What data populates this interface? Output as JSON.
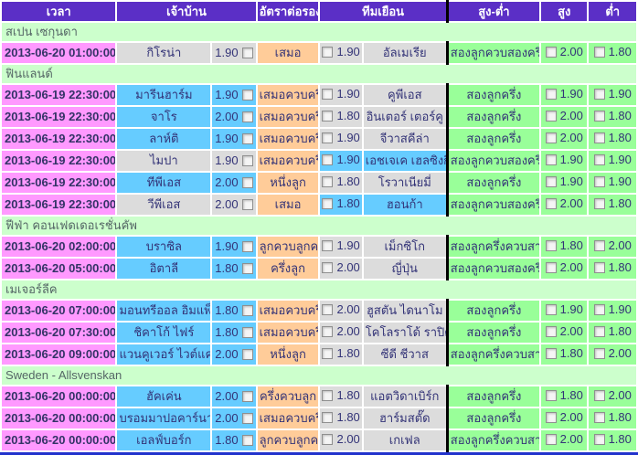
{
  "colors": {
    "header_bg": "#5B2FC6",
    "header_text": "#FFFFFF",
    "section_bg": "#CCFFCC",
    "time_bg": "#FF99FF",
    "favorite_team_bg": "#66CCFF",
    "neutral_team_bg": "#DCDCDC",
    "handicap_bg": "#FFCC99",
    "over_under_bg": "#99FF99",
    "separator": "#000000",
    "bottom_line": "#2233CC"
  },
  "table": {
    "headers": {
      "time": "เวลา",
      "home": "เจ้าบ้าน",
      "handicap": "อัตราต่อรอง",
      "away": "ทีมเยือน",
      "over_under": "สูง-ต่ำ",
      "over": "สูง",
      "under": "ต่ำ"
    },
    "sections": [
      {
        "league": "สเปน เซกุนดา",
        "matches": [
          {
            "time": "2013-06-20 01:00:00",
            "home": "กิโรน่า",
            "home_odds": "1.90",
            "handicap": "เสมอ",
            "away_odds": "1.90",
            "away": "อัลเมเรีย",
            "over_under": "สองลูกควบสองครึ่ง",
            "over": "2.00",
            "under": "1.80",
            "highlight": "none"
          }
        ]
      },
      {
        "league": "ฟินแลนด์",
        "matches": [
          {
            "time": "2013-06-19 22:30:00",
            "home": "มารีนฮาร์ม",
            "home_odds": "1.90",
            "handicap": "เสมอควบครึ่ง",
            "away_odds": "1.90",
            "away": "คูพีเอส",
            "over_under": "สองลูกครึ่ง",
            "over": "1.90",
            "under": "1.90",
            "highlight": "home"
          },
          {
            "time": "2013-06-19 22:30:00",
            "home": "จาโร",
            "home_odds": "2.00",
            "handicap": "เสมอควบครึ่ง",
            "away_odds": "1.80",
            "away": "อินเตอร์ เตอร์คู",
            "over_under": "สองลูกครึ่ง",
            "over": "2.00",
            "under": "1.80",
            "highlight": "home"
          },
          {
            "time": "2013-06-19 22:30:00",
            "home": "ลาห์ติ",
            "home_odds": "1.90",
            "handicap": "เสมอควบครึ่ง",
            "away_odds": "1.90",
            "away": "จีวาสคีล่า",
            "over_under": "สองลูกครึ่ง",
            "over": "2.00",
            "under": "1.80",
            "highlight": "home"
          },
          {
            "time": "2013-06-19 22:30:00",
            "home": "ไมปา",
            "home_odds": "1.90",
            "handicap": "เสมอควบครึ่ง",
            "away_odds": "1.90",
            "away": "เอชเจเค เฮลซิงกิ",
            "over_under": "สองลูกควบสองครึ่ง",
            "over": "1.90",
            "under": "1.90",
            "highlight": "away"
          },
          {
            "time": "2013-06-19 22:30:00",
            "home": "ทีพีเอส",
            "home_odds": "2.00",
            "handicap": "หนึ่งลูก",
            "away_odds": "1.80",
            "away": "โรวาเนียมี่",
            "over_under": "สองลูกครึ่ง",
            "over": "1.90",
            "under": "1.90",
            "highlight": "home"
          },
          {
            "time": "2013-06-19 22:30:00",
            "home": "วีพีเอส",
            "home_odds": "2.00",
            "handicap": "เสมอ",
            "away_odds": "1.80",
            "away": "ฮอนก้า",
            "over_under": "สองลูกควบสองครึ่ง",
            "over": "2.00",
            "under": "1.80",
            "highlight": "away"
          }
        ]
      },
      {
        "league": "ฟีฟ่า คอนเฟดเดอเรชั่นคัพ",
        "matches": [
          {
            "time": "2013-06-20 02:00:00",
            "home": "บราซิล",
            "home_odds": "1.90",
            "handicap": "ลูกควบลูกครึ่ง",
            "away_odds": "1.90",
            "away": "เม็กซิโก",
            "over_under": "สองลูกครึ่งควบสาม",
            "over": "1.80",
            "under": "2.00",
            "highlight": "home"
          },
          {
            "time": "2013-06-20 05:00:00",
            "home": "อิตาลี",
            "home_odds": "1.80",
            "handicap": "ครึ่งลูก",
            "away_odds": "2.00",
            "away": "ญี่ปุ่น",
            "over_under": "สองลูกควบสองครึ่ง",
            "over": "2.00",
            "under": "1.80",
            "highlight": "home"
          }
        ]
      },
      {
        "league": "เมเจอร์ลีค",
        "matches": [
          {
            "time": "2013-06-20 07:00:00",
            "home": "มอนทรีออล อิมแพ็ค",
            "home_odds": "1.80",
            "handicap": "เสมอควบครึ่ง",
            "away_odds": "2.00",
            "away": "ฮูสตัน ไดนาโม",
            "over_under": "สองลูกครึ่ง",
            "over": "1.90",
            "under": "1.90",
            "highlight": "home"
          },
          {
            "time": "2013-06-20 07:30:00",
            "home": "ชิคาโก้ ไฟร์",
            "home_odds": "1.80",
            "handicap": "เสมอควบครึ่ง",
            "away_odds": "2.00",
            "away": "โคโลราโด้ ราปิดส์",
            "over_under": "สองลูกครึ่ง",
            "over": "2.00",
            "under": "1.80",
            "highlight": "home"
          },
          {
            "time": "2013-06-20 09:00:00",
            "home": "แวนคูเวอร์ ไวต์แคปส",
            "home_odds": "2.00",
            "handicap": "หนึ่งลูก",
            "away_odds": "1.80",
            "away": "ซีดี ชีวาส",
            "over_under": "สองลูกครึ่งควบสาม",
            "over": "1.80",
            "under": "2.00",
            "highlight": "home"
          }
        ]
      },
      {
        "league": "Sweden - Allsvenskan",
        "matches": [
          {
            "time": "2013-06-20 00:00:00",
            "home": "ฮัคเค่น",
            "home_odds": "2.00",
            "handicap": "ครึ่งควบลูก",
            "away_odds": "1.80",
            "away": "แอตวิดาเบิร์ก",
            "over_under": "สองลูกครึ่ง",
            "over": "1.80",
            "under": "2.00",
            "highlight": "home"
          },
          {
            "time": "2013-06-20 00:00:00",
            "home": "บรอมมาปอคาร์นา",
            "home_odds": "2.00",
            "handicap": "เสมอควบครึ่ง",
            "away_odds": "1.80",
            "away": "ฮาร์มสตั๊ด",
            "over_under": "สองลูกครึ่ง",
            "over": "2.00",
            "under": "1.80",
            "highlight": "home"
          },
          {
            "time": "2013-06-20 00:00:00",
            "home": "เอลฟ์บอร์ก",
            "home_odds": "1.80",
            "handicap": "ลูกควบลูกครึ่ง",
            "away_odds": "2.00",
            "away": "เกเฟล",
            "over_under": "สองลูกครึ่งควบสาม",
            "over": "2.00",
            "under": "1.80",
            "highlight": "home"
          }
        ]
      }
    ]
  }
}
